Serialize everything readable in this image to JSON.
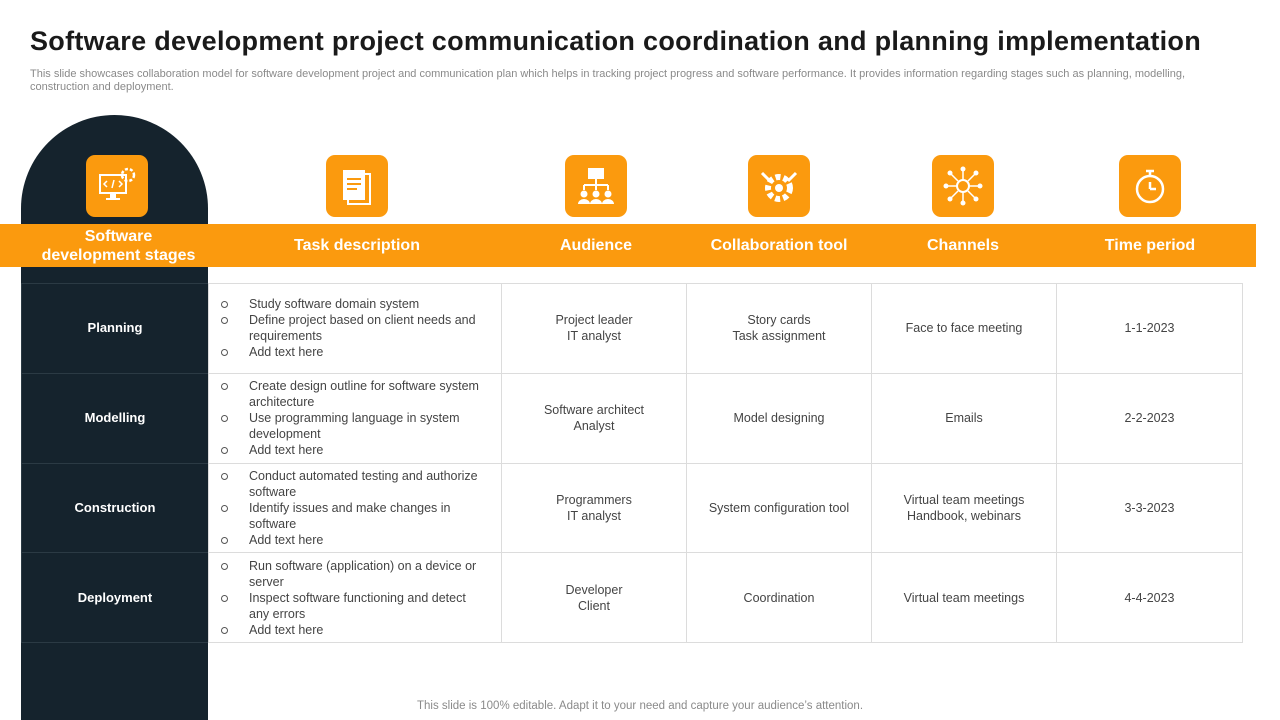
{
  "header": {
    "title": "Software development project communication coordination and planning implementation",
    "subtitle": "This slide showcases collaboration model for software development project and communication plan which helps in tracking project progress and software performance. It provides information regarding stages such as planning, modelling, construction and deployment."
  },
  "table": {
    "stage_header": [
      "Software",
      "development stages"
    ],
    "headers": [
      "Task description",
      "Audience",
      "Collaboration tool",
      "Channels",
      "Time period"
    ],
    "rows": [
      {
        "stage": "Planning",
        "tasks": [
          "Study software domain system",
          "Define project based on client needs and requirements",
          "Add text here"
        ],
        "audience": [
          "Project leader",
          "IT analyst"
        ],
        "tool": [
          "Story cards",
          "Task assignment"
        ],
        "channels": [
          "Face to face meeting"
        ],
        "time": "1-1-2023"
      },
      {
        "stage": "Modelling",
        "tasks": [
          "Create design outline for software system architecture",
          "Use programming language in system development",
          "Add text here"
        ],
        "audience": [
          "Software architect",
          "Analyst"
        ],
        "tool": [
          "Model designing"
        ],
        "channels": [
          "Emails"
        ],
        "time": "2-2-2023"
      },
      {
        "stage": "Construction",
        "tasks": [
          "Conduct automated testing and authorize software",
          "Identify issues and make changes in software",
          "Add text here"
        ],
        "audience": [
          "Programmers",
          "IT analyst"
        ],
        "tool": [
          "System configuration tool"
        ],
        "channels": [
          "Virtual team meetings",
          "Handbook, webinars"
        ],
        "time": "3-3-2023"
      },
      {
        "stage": "Deployment",
        "tasks": [
          "Run software (application) on a device or server",
          "Inspect software functioning and detect any errors",
          "Add text here"
        ],
        "audience": [
          "Developer",
          "Client"
        ],
        "tool": [
          "Coordination"
        ],
        "channels": [
          "Virtual team meetings"
        ],
        "time": "4-4-2023"
      }
    ]
  },
  "footer": "This slide is 100% editable. Adapt it to your need and capture your audience’s attention."
}
